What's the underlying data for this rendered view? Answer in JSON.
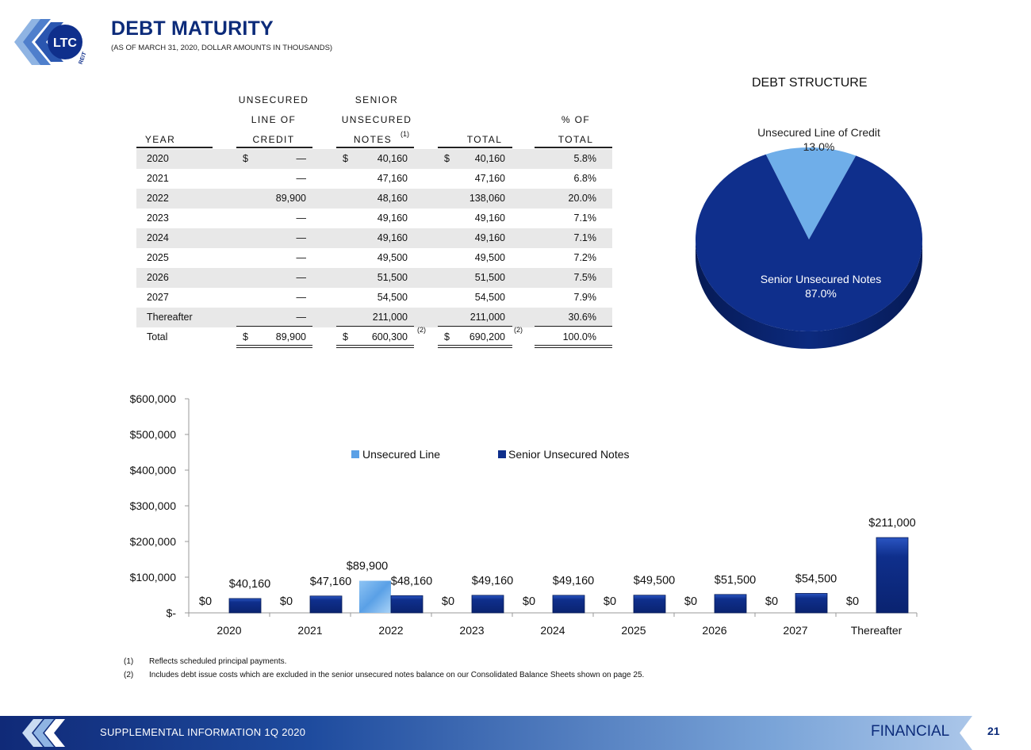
{
  "header": {
    "logo_text": "LTC",
    "logo_subtext": "REIT",
    "title": "DEBT MATURITY",
    "subtitle": "(AS OF MARCH 31, 2020, DOLLAR AMOUNTS IN THOUSANDS)"
  },
  "table": {
    "headers": {
      "year": "YEAR",
      "line_1": "UNSECURED",
      "line_2": "LINE OF",
      "line_3": "CREDIT",
      "notes_1": "SENIOR",
      "notes_2": "UNSECURED",
      "notes_3": "NOTES",
      "notes_sup": "(1)",
      "total": "TOTAL",
      "pct_1": "% OF",
      "pct_2": "TOTAL"
    },
    "rows": [
      {
        "year": "2020",
        "line": "—",
        "notes": "40,160",
        "total": "40,160",
        "pct": "5.8%"
      },
      {
        "year": "2021",
        "line": "—",
        "notes": "47,160",
        "total": "47,160",
        "pct": "6.8%"
      },
      {
        "year": "2022",
        "line": "89,900",
        "notes": "48,160",
        "total": "138,060",
        "pct": "20.0%"
      },
      {
        "year": "2023",
        "line": "—",
        "notes": "49,160",
        "total": "49,160",
        "pct": "7.1%"
      },
      {
        "year": "2024",
        "line": "—",
        "notes": "49,160",
        "total": "49,160",
        "pct": "7.1%"
      },
      {
        "year": "2025",
        "line": "—",
        "notes": "49,500",
        "total": "49,500",
        "pct": "7.2%"
      },
      {
        "year": "2026",
        "line": "—",
        "notes": "51,500",
        "total": "51,500",
        "pct": "7.5%"
      },
      {
        "year": "2027",
        "line": "—",
        "notes": "54,500",
        "total": "54,500",
        "pct": "7.9%"
      },
      {
        "year": "Thereafter",
        "line": "—",
        "notes": "211,000",
        "total": "211,000",
        "pct": "30.6%"
      }
    ],
    "total_row": {
      "year": "Total",
      "line": "89,900",
      "notes": "600,300",
      "notes_sup": "(2)",
      "total": "690,200",
      "total_sup": "(2)",
      "pct": "100.0%"
    },
    "currency_symbol": "$"
  },
  "pie": {
    "title": "DEBT STRUCTURE",
    "slices": [
      {
        "name": "Unsecured Line of Credit",
        "pct_label": "13.0%",
        "value": 13.0,
        "color": "#6faee9"
      },
      {
        "name": "Senior Unsecured Notes",
        "pct_label": "87.0%",
        "value": 87.0,
        "color": "#0f2f8c"
      }
    ]
  },
  "chart_data": {
    "type": "bar",
    "categories": [
      "2020",
      "2021",
      "2022",
      "2023",
      "2024",
      "2025",
      "2026",
      "2027",
      "Thereafter"
    ],
    "series": [
      {
        "name": "Unsecured Line",
        "values": [
          0,
          0,
          89900,
          0,
          0,
          0,
          0,
          0,
          0
        ],
        "labels": [
          "$0",
          "$0",
          "$89,900",
          "$0",
          "$0",
          "$0",
          "$0",
          "$0",
          "$0"
        ],
        "color": "#5aa0e6"
      },
      {
        "name": "Senior Unsecured Notes",
        "values": [
          40160,
          47160,
          48160,
          49160,
          49160,
          49500,
          51500,
          54500,
          211000
        ],
        "labels": [
          "$40,160",
          "$47,160",
          "$48,160",
          "$49,160",
          "$49,160",
          "$49,500",
          "$51,500",
          "$54,500",
          "$211,000"
        ],
        "color": "#0f2f8c"
      }
    ],
    "ylim": [
      0,
      600000
    ],
    "yticks": [
      0,
      100000,
      200000,
      300000,
      400000,
      500000,
      600000
    ],
    "ytick_labels": [
      "$-",
      "$100,000",
      "$200,000",
      "$300,000",
      "$400,000",
      "$500,000",
      "$600,000"
    ],
    "legend_position": "top-center"
  },
  "footnotes": [
    {
      "num": "(1)",
      "text": "Reflects scheduled principal payments."
    },
    {
      "num": "(2)",
      "text": "Includes debt issue costs which are excluded in the senior unsecured notes balance on our Consolidated Balance Sheets shown on page 25."
    }
  ],
  "footer": {
    "text": "SUPPLEMENTAL INFORMATION 1Q 2020",
    "section": "FINANCIAL",
    "page_number": "21"
  }
}
